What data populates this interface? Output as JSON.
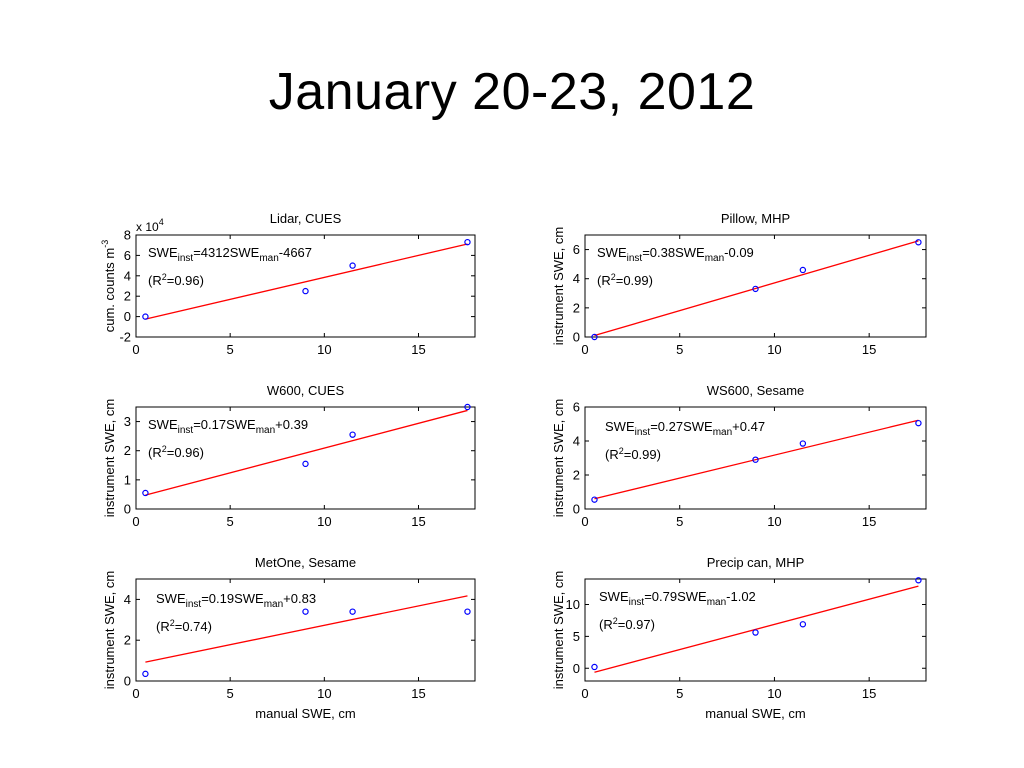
{
  "slide": {
    "title": "January 20-23, 2012"
  },
  "chart_data": [
    {
      "type": "scatter",
      "title": "Lidar, CUES",
      "xlabel": "",
      "ylabel": "cum. counts m",
      "ylabel_sup": "-3",
      "y_multiplier": "x 10",
      "y_multiplier_exp": "4",
      "xlim": [
        0,
        18
      ],
      "ylim": [
        -2,
        8
      ],
      "xticks": [
        0,
        5,
        10,
        15
      ],
      "yticks": [
        -2,
        0,
        2,
        4,
        6,
        8
      ],
      "points": [
        [
          0.5,
          0.0
        ],
        [
          9.0,
          2.5
        ],
        [
          11.5,
          5.0
        ],
        [
          17.6,
          7.3
        ]
      ],
      "fit": {
        "slope": 0.4312,
        "intercept": -0.4667
      },
      "equation": {
        "lhs": "SWE",
        "lhs_sub": "inst",
        "mid": "=4312SWE",
        "rhs_sub": "man",
        "tail": "-4667"
      },
      "r2": {
        "pre": "(R",
        "sup": "2",
        "post": "=0.96)"
      }
    },
    {
      "type": "scatter",
      "title": "Pillow, MHP",
      "xlabel": "",
      "ylabel": "instrument SWE, cm",
      "xlim": [
        0,
        18
      ],
      "ylim": [
        0,
        7
      ],
      "xticks": [
        0,
        5,
        10,
        15
      ],
      "yticks": [
        0,
        2,
        4,
        6
      ],
      "points": [
        [
          0.5,
          0.0
        ],
        [
          9.0,
          3.3
        ],
        [
          11.5,
          4.6
        ],
        [
          17.6,
          6.5
        ]
      ],
      "fit": {
        "slope": 0.38,
        "intercept": -0.09
      },
      "equation": {
        "lhs": "SWE",
        "lhs_sub": "inst",
        "mid": "=0.38SWE",
        "rhs_sub": "man",
        "tail": "-0.09"
      },
      "r2": {
        "pre": "(R",
        "sup": "2",
        "post": "=0.99)"
      }
    },
    {
      "type": "scatter",
      "title": "W600, CUES",
      "xlabel": "",
      "ylabel": "instrument SWE, cm",
      "xlim": [
        0,
        18
      ],
      "ylim": [
        0,
        3.5
      ],
      "xticks": [
        0,
        5,
        10,
        15
      ],
      "yticks": [
        0,
        1,
        2,
        3
      ],
      "points": [
        [
          0.5,
          0.55
        ],
        [
          9.0,
          1.55
        ],
        [
          11.5,
          2.55
        ],
        [
          17.6,
          3.5
        ]
      ],
      "fit": {
        "slope": 0.17,
        "intercept": 0.39
      },
      "equation": {
        "lhs": "SWE",
        "lhs_sub": "inst",
        "mid": "=0.17SWE",
        "rhs_sub": "man",
        "tail": "+0.39"
      },
      "r2": {
        "pre": "(R",
        "sup": "2",
        "post": "=0.96)"
      }
    },
    {
      "type": "scatter",
      "title": "WS600, Sesame",
      "xlabel": "",
      "ylabel": "instrument SWE, cm",
      "xlim": [
        0,
        18
      ],
      "ylim": [
        0,
        6
      ],
      "xticks": [
        0,
        5,
        10,
        15
      ],
      "yticks": [
        0,
        2,
        4,
        6
      ],
      "points": [
        [
          0.5,
          0.55
        ],
        [
          9.0,
          2.9
        ],
        [
          11.5,
          3.85
        ],
        [
          17.6,
          5.05
        ]
      ],
      "fit": {
        "slope": 0.27,
        "intercept": 0.47
      },
      "equation": {
        "lhs": "SWE",
        "lhs_sub": "inst",
        "mid": "=0.27SWE",
        "rhs_sub": "man",
        "tail": "+0.47"
      },
      "r2": {
        "pre": "(R",
        "sup": "2",
        "post": "=0.99)"
      }
    },
    {
      "type": "scatter",
      "title": "MetOne, Sesame",
      "xlabel": "manual SWE, cm",
      "ylabel": "instrument SWE, cm",
      "xlim": [
        0,
        18
      ],
      "ylim": [
        0,
        5
      ],
      "xticks": [
        0,
        5,
        10,
        15
      ],
      "yticks": [
        0,
        2,
        4
      ],
      "points": [
        [
          0.5,
          0.35
        ],
        [
          9.0,
          3.4
        ],
        [
          11.5,
          3.4
        ],
        [
          17.6,
          3.4
        ]
      ],
      "fit": {
        "slope": 0.19,
        "intercept": 0.83
      },
      "equation": {
        "lhs": "SWE",
        "lhs_sub": "inst",
        "mid": "=0.19SWE",
        "rhs_sub": "man",
        "tail": "+0.83"
      },
      "r2": {
        "pre": "(R",
        "sup": "2",
        "post": "=0.74)"
      }
    },
    {
      "type": "scatter",
      "title": "Precip can, MHP",
      "xlabel": "manual SWE, cm",
      "ylabel": "instrument SWE, cm",
      "xlim": [
        0,
        18
      ],
      "ylim": [
        -2,
        14
      ],
      "xticks": [
        0,
        5,
        10,
        15
      ],
      "yticks": [
        0,
        5,
        10
      ],
      "points": [
        [
          0.5,
          0.2
        ],
        [
          9.0,
          5.6
        ],
        [
          11.5,
          6.9
        ],
        [
          17.6,
          13.8
        ]
      ],
      "fit": {
        "slope": 0.79,
        "intercept": -1.02
      },
      "equation": {
        "lhs": "SWE",
        "lhs_sub": "inst",
        "mid": "=0.79SWE",
        "rhs_sub": "man",
        "tail": "-1.02"
      },
      "r2": {
        "pre": "(R",
        "sup": "2",
        "post": "=0.97)"
      }
    }
  ],
  "colors": {
    "points": "#0000ff",
    "fit_line": "#ff0000",
    "axes": "#000000"
  }
}
